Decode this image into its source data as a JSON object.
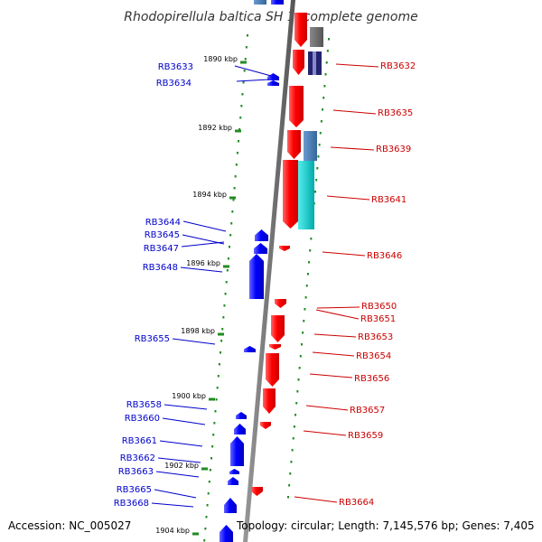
{
  "title": "Rhodopirellula baltica SH 1, complete genome",
  "footer": {
    "accession": "Accession: NC_005027",
    "topology": "Topology: circular; Length: 7,145,576 bp; Genes: 7,405"
  },
  "colors": {
    "forward_gene": "#0000ff",
    "reverse_gene": "#ff0000",
    "forward_label": "#0000cc",
    "reverse_label": "#cc0000",
    "backbone": "#777777",
    "tick": "#228b22",
    "cyan_track": "#00cccc",
    "steelblue_track": "#4682b4",
    "navy_track": "#1a1a66"
  },
  "kbp_ticks": [
    "1890 kbp",
    "1892 kbp",
    "1894 kbp",
    "1896 kbp",
    "1898 kbp",
    "1900 kbp",
    "1902 kbp",
    "1904 kbp"
  ],
  "forward_genes": [
    "RB3633",
    "RB3634",
    "RB3644",
    "RB3645",
    "RB3647",
    "RB3648",
    "RB3655",
    "RB3658",
    "RB3660",
    "RB3661",
    "RB3662",
    "RB3663",
    "RB3665",
    "RB3668"
  ],
  "reverse_genes": [
    "RB3632",
    "RB3635",
    "RB3639",
    "RB3641",
    "RB3646",
    "RB3650",
    "RB3651",
    "RB3653",
    "RB3654",
    "RB3656",
    "RB3657",
    "RB3659",
    "RB3664"
  ]
}
